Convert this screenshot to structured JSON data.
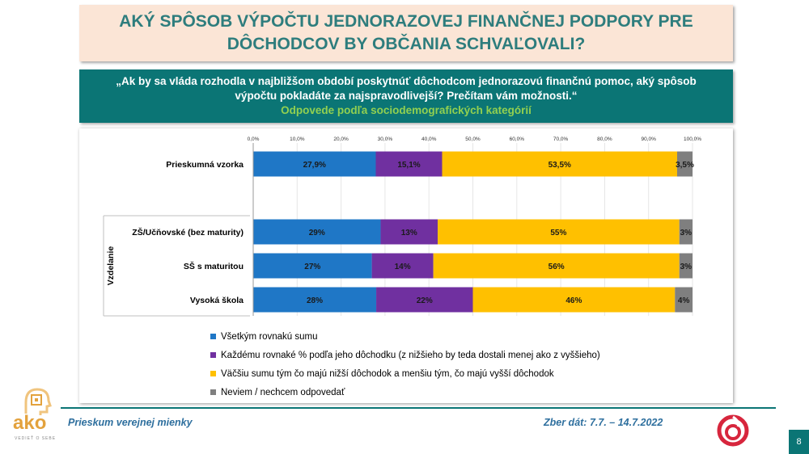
{
  "title": {
    "line1": "AKÝ SPÔSOB VÝPOČTU JEDNORAZOVEJ FINANČNEJ PODPORY PRE",
    "line2": "DÔCHODCOV BY OBČANIA SCHVAĽOVALI?"
  },
  "question": {
    "line1": "„Ak by sa vláda rozhodla v najbližšom období poskytnúť dôchodcom jednorazovú finančnú pomoc, aký spôsob",
    "line2": "výpočtu pokladáte za najspravodlivejší? Prečítam vám možnosti.“",
    "subtitle": "Odpovede podľa sociodemografických kategórií"
  },
  "colors": {
    "blue": "#1f77c6",
    "purple": "#7030a0",
    "yellow": "#ffc000",
    "gray": "#7f7f7f",
    "teal": "#0b7575"
  },
  "chart_data": {
    "type": "bar",
    "orientation": "horizontal-stacked",
    "axis_ticks": [
      "0,0%",
      "10,0%",
      "20,0%",
      "30,0%",
      "40,0%",
      "50,0%",
      "60,0%",
      "70,0%",
      "80,0%",
      "90,0%",
      "100,0%"
    ],
    "xlim": [
      0,
      100
    ],
    "group_label": "Vzdelanie",
    "rows": [
      {
        "category": "Prieskumná vzorka",
        "values": [
          27.9,
          15.1,
          53.5,
          3.5
        ],
        "labels": [
          "27,9%",
          "15,1%",
          "53,5%",
          "3,5%"
        ],
        "grouped": false
      },
      {
        "category": "ZŠ/Učňovské (bez maturity)",
        "values": [
          29,
          13,
          55,
          3
        ],
        "labels": [
          "29%",
          "13%",
          "55%",
          "3%"
        ],
        "grouped": true
      },
      {
        "category": "SŠ s maturitou",
        "values": [
          27,
          14,
          56,
          3
        ],
        "labels": [
          "27%",
          "14%",
          "56%",
          "3%"
        ],
        "grouped": true
      },
      {
        "category": "Vysoká škola",
        "values": [
          28,
          22,
          46,
          4
        ],
        "labels": [
          "28%",
          "22%",
          "46%",
          "4%"
        ],
        "grouped": true
      }
    ],
    "series": [
      {
        "name": "Všetkým rovnakú sumu",
        "color": "#1f77c6"
      },
      {
        "name": "Každému rovnaké % podľa jeho dôchodku (z nižšieho by teda dostali menej ako z vyššieho)",
        "color": "#7030a0"
      },
      {
        "name": "Väčšiu sumu tým čo majú nižší dôchodok a menšiu tým, čo majú vyšší dôchodok",
        "color": "#ffc000"
      },
      {
        "name": "Neviem / nechcem odpovedať",
        "color": "#7f7f7f"
      }
    ]
  },
  "footer": {
    "left": "Prieskum verejnej mienky",
    "right": "Zber dát: 7.7. – 14.7.2022",
    "page": "8"
  },
  "logo": {
    "text": "ako",
    "tagline": "VEDIEŤ O SEBE"
  }
}
